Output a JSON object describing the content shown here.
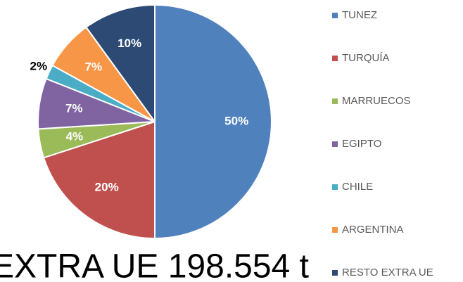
{
  "chart_data": {
    "type": "pie",
    "categories": [
      "TUNEZ",
      "TURQUÍA",
      "MARRUECOS",
      "EGIPTO",
      "CHILE",
      "ARGENTINA",
      "RESTO EXTRA UE"
    ],
    "values": [
      50,
      20,
      4,
      7,
      2,
      7,
      10
    ],
    "value_labels": [
      "50%",
      "20%",
      "4%",
      "7%",
      "2%",
      "7%",
      "10%"
    ],
    "colors": [
      "#4f81bd",
      "#c0504d",
      "#9bbb59",
      "#8064a2",
      "#4bacc6",
      "#f79646",
      "#2c4a74"
    ],
    "legend": "right",
    "annotation": "EXTRA UE 198.554 t"
  }
}
